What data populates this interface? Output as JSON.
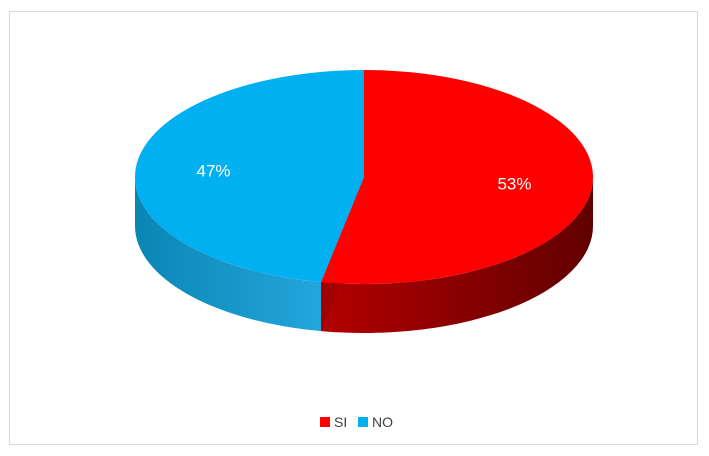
{
  "chart_data": {
    "type": "pie",
    "style": "3d",
    "categories": [
      "SI",
      "NO"
    ],
    "values": [
      53,
      47
    ],
    "labels": [
      "53%",
      "47%"
    ],
    "colors": [
      "#ff0000",
      "#00b0f0"
    ],
    "side_colors": [
      "#a00000",
      "#0089bd"
    ],
    "legend_position": "bottom"
  }
}
